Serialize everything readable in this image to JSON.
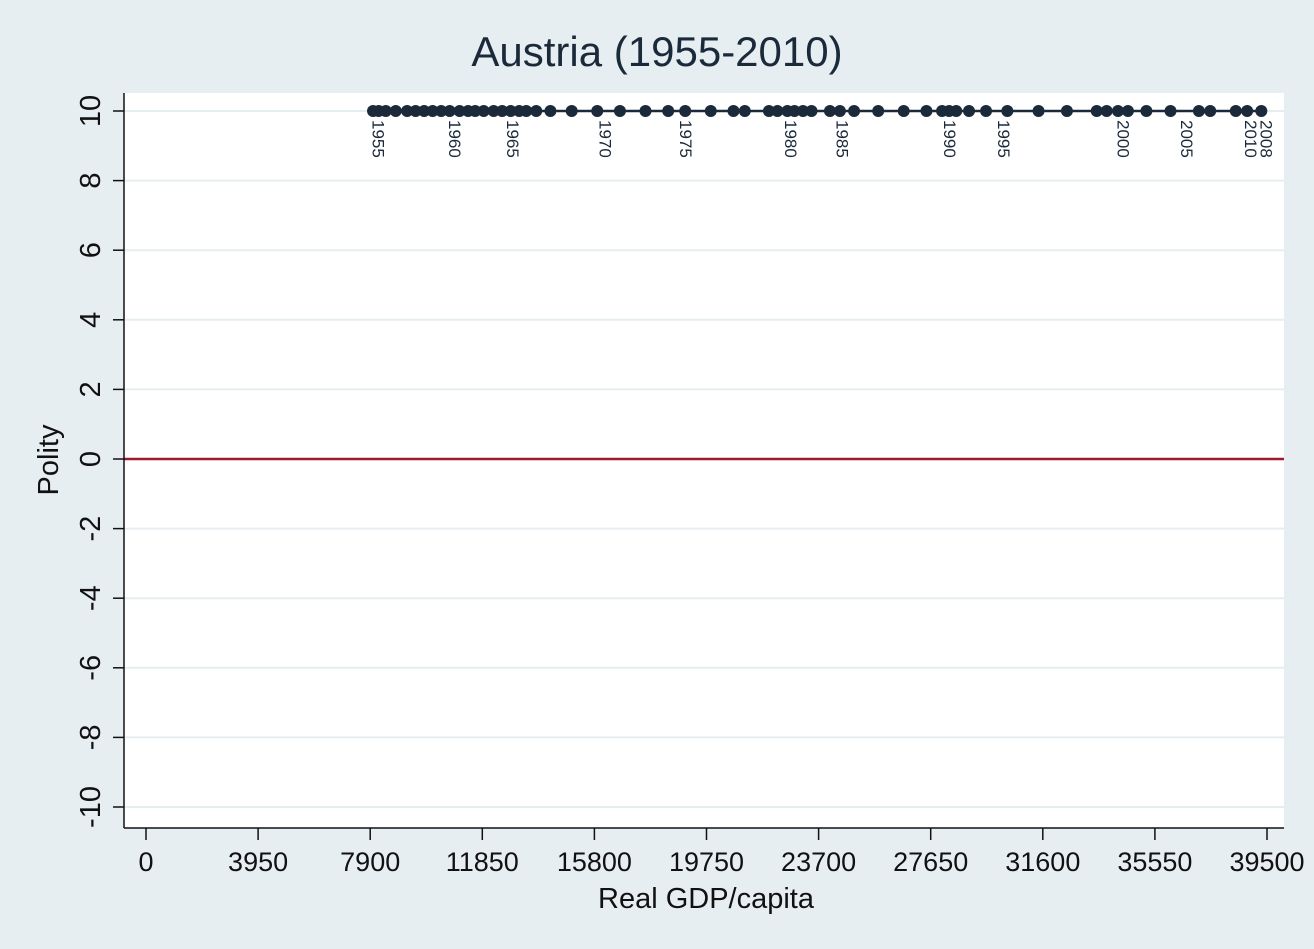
{
  "chart_data": {
    "type": "line",
    "title": "Austria (1955-2010)",
    "xlabel": "Real GDP/capita",
    "ylabel": "Polity",
    "xlim": [
      0,
      39500
    ],
    "ylim": [
      -10,
      10
    ],
    "x_ticks": [
      0,
      3950,
      7900,
      11850,
      15800,
      19750,
      23700,
      27650,
      31600,
      35550,
      39500
    ],
    "y_ticks": [
      -10,
      -8,
      -6,
      -4,
      -2,
      0,
      2,
      4,
      6,
      8,
      10
    ],
    "grid": true,
    "reference_line": {
      "y": 0,
      "color": "#a0182e"
    },
    "series": [
      {
        "color": "#1b2a3a",
        "x": [
          8000,
          8200,
          8450,
          8800,
          9200,
          9500,
          9800,
          10100,
          10400,
          10700,
          11050,
          11350,
          11600,
          11900,
          12250,
          12550,
          12850,
          13150,
          13400,
          13750,
          14250,
          15000,
          15900,
          16700,
          17600,
          18400,
          19000,
          19900,
          20700,
          21100,
          21950,
          22250,
          22600,
          22850,
          23150,
          23450,
          24100,
          24450,
          24950,
          25800,
          26700,
          27500,
          28050,
          28300,
          28550,
          29000,
          29600,
          30350,
          31450,
          32450,
          33500,
          33850,
          34250,
          34600,
          35250,
          36100,
          37100,
          37500,
          38400,
          38800,
          39300
        ],
        "y": [
          10,
          10,
          10,
          10,
          10,
          10,
          10,
          10,
          10,
          10,
          10,
          10,
          10,
          10,
          10,
          10,
          10,
          10,
          10,
          10,
          10,
          10,
          10,
          10,
          10,
          10,
          10,
          10,
          10,
          10,
          10,
          10,
          10,
          10,
          10,
          10,
          10,
          10,
          10,
          10,
          10,
          10,
          10,
          10,
          10,
          10,
          10,
          10,
          10,
          10,
          10,
          10,
          10,
          10,
          10,
          10,
          10,
          10,
          10,
          10,
          10
        ]
      }
    ],
    "point_labels": [
      {
        "text": "1955",
        "x": 8150
      },
      {
        "text": "1960",
        "x": 10850
      },
      {
        "text": "1965",
        "x": 12900
      },
      {
        "text": "1970",
        "x": 16150
      },
      {
        "text": "1975",
        "x": 19000
      },
      {
        "text": "1980",
        "x": 22700
      },
      {
        "text": "1985",
        "x": 24500
      },
      {
        "text": "1990",
        "x": 28300
      },
      {
        "text": "1995",
        "x": 30200
      },
      {
        "text": "2000",
        "x": 34400
      },
      {
        "text": "2005",
        "x": 36650
      },
      {
        "text": "2010",
        "x": 38900
      },
      {
        "text": "2008",
        "x": 39450
      }
    ]
  }
}
